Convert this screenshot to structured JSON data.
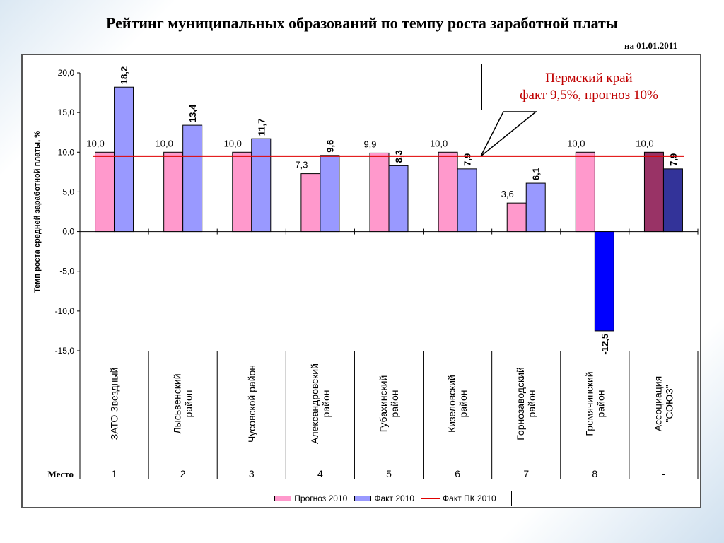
{
  "chart_data": {
    "type": "bar",
    "title": "Рейтинг муниципальных образований по темпу роста заработной платы",
    "subtitle": "на 01.01.2011",
    "ylabel": "Темп роста средней заработной платы, %",
    "ylim": [
      -15,
      20
    ],
    "yticks": [
      "20,0",
      "15,0",
      "10,0",
      "5,0",
      "0,0",
      "-5,0",
      "-10,0",
      "-15,0"
    ],
    "categories": [
      "ЗАТО Звездный",
      "Лысьвенский район",
      "Чусовской район",
      "Александровский район",
      "Губахинский район",
      "Кизеловский район",
      "Горнозаводский район",
      "Гремячинский район",
      "Ассоциация \"СОЮЗ\""
    ],
    "places_label": "Место",
    "places": [
      "1",
      "2",
      "3",
      "4",
      "5",
      "6",
      "7",
      "8",
      "-"
    ],
    "series": [
      {
        "name": "Прогноз 2010",
        "color": "#ff99cc",
        "values": [
          10.0,
          10.0,
          10.0,
          7.3,
          9.9,
          10.0,
          3.6,
          10.0,
          10.0
        ],
        "labels": [
          "10,0",
          "10,0",
          "10,0",
          "7,3",
          "9,9",
          "10,0",
          "3,6",
          "10,0",
          "10,0"
        ]
      },
      {
        "name": "Факт 2010",
        "color": "#9999ff",
        "values": [
          18.2,
          13.4,
          11.7,
          9.6,
          8.3,
          7.9,
          6.1,
          -12.5,
          7.9
        ],
        "labels": [
          "18,2",
          "13,4",
          "11,7",
          "9,6",
          "8,3",
          "7,9",
          "6,1",
          "-12,5",
          "7,9"
        ]
      }
    ],
    "special_colors": {
      "last_forecast": "#993366",
      "last_fact": "#333399",
      "negative_fact": "#0000ff"
    },
    "reference_line": {
      "name": "Факт ПК 2010",
      "value": 9.5,
      "color": "#e00000"
    },
    "annotation": {
      "line1": "Пермский край",
      "line2": "факт 9,5%, прогноз 10%"
    },
    "legend_position": "bottom",
    "grid": false
  }
}
